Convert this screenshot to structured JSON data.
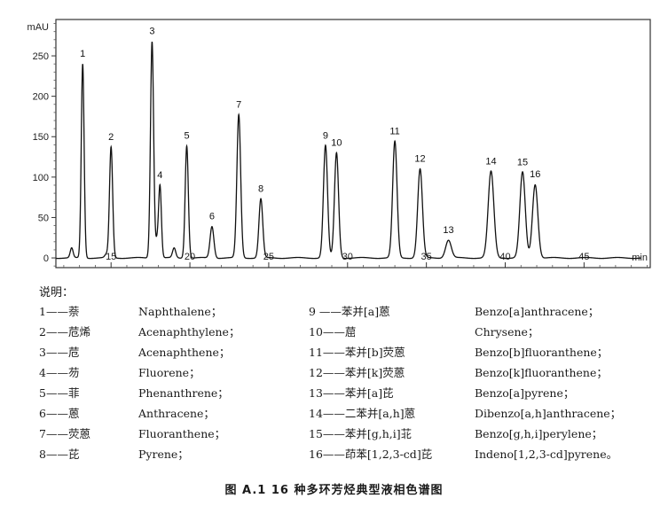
{
  "chart_data": {
    "type": "line",
    "title": "",
    "ylabel": "mAU",
    "xlabel": "min",
    "xlim": [
      11.5,
      49.2
    ],
    "ylim": [
      -12,
      295
    ],
    "x_ticks": [
      15,
      20,
      25,
      30,
      35,
      40,
      45
    ],
    "y_ticks": [
      0,
      50,
      100,
      150,
      200,
      250
    ],
    "baseline": 0,
    "minor_peaks": [
      {
        "x": 12.5,
        "height": 12,
        "width": 0.09
      },
      {
        "x": 14.7,
        "height": 4,
        "width": 0.1
      },
      {
        "x": 17.9,
        "height": 18,
        "width": 0.08
      },
      {
        "x": 19.0,
        "height": 12,
        "width": 0.1
      }
    ],
    "peaks": [
      {
        "label": "1",
        "x": 13.2,
        "height": 240,
        "width": 0.09
      },
      {
        "label": "2",
        "x": 15.0,
        "height": 137,
        "width": 0.1
      },
      {
        "label": "3",
        "x": 17.6,
        "height": 268,
        "width": 0.1
      },
      {
        "label": "4",
        "x": 18.1,
        "height": 90,
        "width": 0.09
      },
      {
        "label": "5",
        "x": 19.8,
        "height": 139,
        "width": 0.1
      },
      {
        "label": "6",
        "x": 21.4,
        "height": 39,
        "width": 0.12
      },
      {
        "label": "7",
        "x": 23.1,
        "height": 177,
        "width": 0.12
      },
      {
        "label": "8",
        "x": 24.5,
        "height": 73,
        "width": 0.12
      },
      {
        "label": "9",
        "x": 28.6,
        "height": 139,
        "width": 0.13
      },
      {
        "label": "10",
        "x": 29.3,
        "height": 130,
        "width": 0.13
      },
      {
        "label": "11",
        "x": 33.0,
        "height": 144,
        "width": 0.14
      },
      {
        "label": "12",
        "x": 34.6,
        "height": 110,
        "width": 0.15
      },
      {
        "label": "13",
        "x": 36.4,
        "height": 22,
        "width": 0.18
      },
      {
        "label": "14",
        "x": 39.1,
        "height": 107,
        "width": 0.18
      },
      {
        "label": "15",
        "x": 41.1,
        "height": 106,
        "width": 0.17
      },
      {
        "label": "16",
        "x": 41.9,
        "height": 91,
        "width": 0.17
      }
    ]
  },
  "note_title": "说明：",
  "left_items": [
    {
      "cn": "1——萘",
      "en": "Naphthalene；"
    },
    {
      "cn": "2——苊烯",
      "en": "Acenaphthylene；"
    },
    {
      "cn": "3——苊",
      "en": "Acenaphthene；"
    },
    {
      "cn": "4——芴",
      "en": "Fluorene；"
    },
    {
      "cn": "5——菲",
      "en": "Phenanthrene；"
    },
    {
      "cn": "6——蒽",
      "en": "Anthracene；"
    },
    {
      "cn": "7——荧蒽",
      "en": "Fluoranthene；"
    },
    {
      "cn": "8——芘",
      "en": "Pyrene；"
    }
  ],
  "right_items": [
    {
      "cn": "9 ——苯并[a]蒽",
      "en": "Benzo[a]anthracene；"
    },
    {
      "cn": "10——䓛",
      "en": "Chrysene；"
    },
    {
      "cn": "11——苯并[b]荧蒽",
      "en": "Benzo[b]fluoranthene；"
    },
    {
      "cn": "12——苯并[k]荧蒽",
      "en": "Benzo[k]fluoranthene；"
    },
    {
      "cn": "13——苯并[a]芘",
      "en": "Benzo[a]pyrene；"
    },
    {
      "cn": "14——二苯并[a,h]蒽",
      "en": "Dibenzo[a,h]anthracene；"
    },
    {
      "cn": "15——苯并[g,h,i]苝",
      "en": "Benzo[g,h,i]perylene；"
    },
    {
      "cn": "16——茚苯[1,2,3-cd]芘",
      "en": "Indeno[1,2,3-cd]pyrene。"
    }
  ],
  "caption": "图 A.1 16 种多环芳烃典型液相色谱图",
  "colors": {
    "trace": "#111111",
    "frame": "#333333"
  }
}
